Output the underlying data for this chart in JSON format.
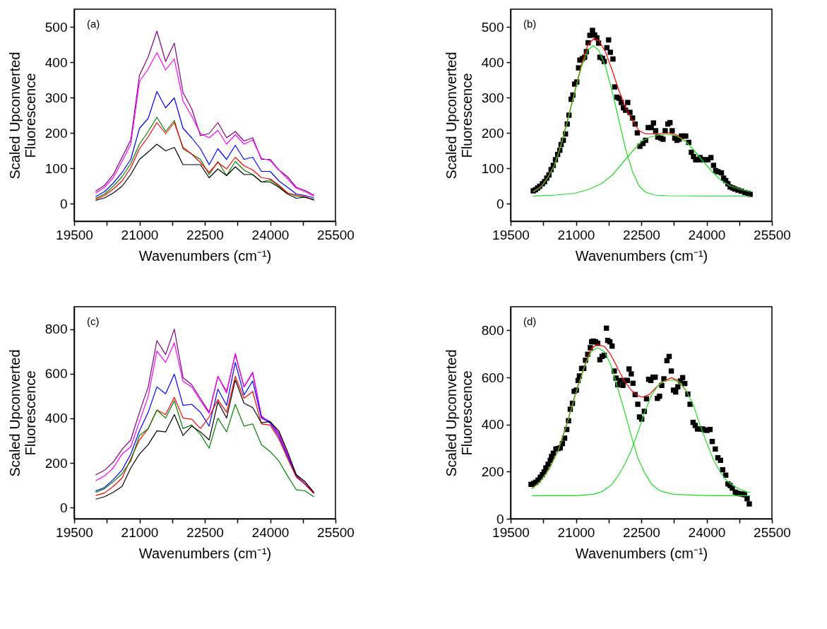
{
  "chart_data": [
    {
      "type": "line",
      "annotations": [
        "(a)"
      ],
      "xlabel": "Wavenumbers (cm⁻¹)",
      "ylabel": "Scaled Upconverted\nFluorescence",
      "xlim": [
        19500,
        25500
      ],
      "ylim": [
        -50,
        550
      ],
      "xticks": [
        19500,
        {
          "value": 20250,
          "label": null
        },
        21000,
        {
          "value": 21750,
          "label": null
        },
        22500,
        {
          "value": 23250,
          "label": null
        },
        24000,
        {
          "value": 24750,
          "label": null
        },
        25500
      ],
      "yticks": [
        0,
        100,
        200,
        300,
        400,
        500
      ],
      "x": [
        20000,
        20200,
        20400,
        20600,
        20800,
        21000,
        21200,
        21400,
        21600,
        21800,
        22000,
        22200,
        22400,
        22600,
        22800,
        23000,
        23200,
        23400,
        23600,
        23800,
        24000,
        24200,
        24400,
        24600,
        24800,
        25000
      ],
      "series": [
        {
          "color": "#800080",
          "values": [
            35,
            52,
            82,
            131,
            180,
            363,
            415,
            488,
            402,
            454,
            314,
            268,
            192,
            198,
            229,
            186,
            204,
            177,
            186,
            125,
            125,
            95,
            76,
            46,
            37,
            24
          ]
        },
        {
          "color": "#ff00ff",
          "values": [
            30,
            46,
            73,
            119,
            168,
            345,
            381,
            427,
            378,
            409,
            290,
            247,
            198,
            186,
            207,
            168,
            195,
            168,
            180,
            128,
            122,
            95,
            70,
            43,
            34,
            21
          ]
        },
        {
          "color": "#0000ff",
          "values": [
            20,
            34,
            58,
            88,
            125,
            213,
            241,
            317,
            271,
            299,
            213,
            186,
            155,
            110,
            155,
            125,
            165,
            125,
            131,
            91,
            91,
            64,
            46,
            27,
            23,
            16
          ]
        },
        {
          "color": "#008000",
          "values": [
            15,
            27,
            49,
            76,
            113,
            168,
            204,
            244,
            204,
            235,
            155,
            140,
            125,
            82,
            119,
            79,
            119,
            95,
            82,
            61,
            67,
            49,
            30,
            21,
            18,
            12
          ]
        },
        {
          "color": "#ff0000",
          "values": [
            12,
            23,
            41,
            64,
            101,
            155,
            189,
            229,
            198,
            229,
            159,
            140,
            116,
            88,
            116,
            98,
            131,
            107,
            95,
            73,
            70,
            52,
            30,
            24,
            20,
            10
          ]
        },
        {
          "color": "#000000",
          "values": [
            9,
            16,
            30,
            49,
            82,
            125,
            146,
            168,
            149,
            159,
            110,
            110,
            110,
            73,
            98,
            79,
            104,
            82,
            82,
            61,
            61,
            46,
            27,
            15,
            18,
            10
          ]
        }
      ]
    },
    {
      "type": "scatter",
      "annotations": [
        "(b)"
      ],
      "xlabel": "Wavenumbers (cm⁻¹)",
      "ylabel": "Scaled Upconverted\nFluorescence",
      "xlim": [
        19500,
        25500
      ],
      "ylim": [
        -50,
        550
      ],
      "xticks": [
        19500,
        {
          "value": 20250,
          "label": null
        },
        21000,
        {
          "value": 21750,
          "label": null
        },
        22500,
        {
          "value": 23250,
          "label": null
        },
        24000,
        {
          "value": 24750,
          "label": null
        },
        25500
      ],
      "yticks": [
        0,
        100,
        200,
        300,
        400,
        500
      ],
      "series": [
        {
          "color": "#000000",
          "marker": "square",
          "x": [
            20020,
            20070,
            20120,
            20170,
            20230,
            20280,
            20330,
            20380,
            20430,
            20480,
            20530,
            20580,
            20630,
            20660,
            20710,
            20760,
            20800,
            20840,
            20890,
            20930,
            20970,
            21020,
            21060,
            21090,
            21150,
            21200,
            21240,
            21280,
            21320,
            21380,
            21430,
            21480,
            21520,
            21550,
            21610,
            21650,
            21710,
            21750,
            21790,
            21850,
            21890,
            21940,
            21990,
            22040,
            22090,
            22140,
            22190,
            22240,
            22300,
            22360,
            22410,
            22470,
            22540,
            22600,
            22660,
            22730,
            22780,
            22830,
            22880,
            22950,
            23000,
            23050,
            23110,
            23160,
            23210,
            23270,
            23320,
            23370,
            23420,
            23470,
            23520,
            23590,
            23650,
            23700,
            23750,
            23800,
            23850,
            23900,
            23960,
            24030,
            24100,
            24160,
            24210,
            24260,
            24340,
            24390,
            24440,
            24490,
            24540,
            24600,
            24650,
            24720,
            24800,
            24880,
            24950,
            25000
          ],
          "values": [
            36,
            39,
            44,
            49,
            56,
            62,
            72,
            81,
            96,
            108,
            124,
            139,
            151,
            167,
            179,
            197,
            225,
            250,
            295,
            307,
            338,
            344,
            384,
            406,
            410,
            414,
            430,
            455,
            476,
            490,
            477,
            469,
            454,
            414,
            411,
            402,
            441,
            463,
            428,
            409,
            330,
            301,
            298,
            286,
            271,
            264,
            286,
            258,
            242,
            225,
            200,
            162,
            170,
            179,
            215,
            215,
            228,
            206,
            188,
            185,
            182,
            206,
            225,
            229,
            206,
            185,
            179,
            182,
            191,
            191,
            191,
            173,
            145,
            133,
            124,
            124,
            130,
            124,
            124,
            124,
            130,
            108,
            93,
            90,
            87,
            72,
            65,
            56,
            47,
            44,
            41,
            38,
            35,
            31,
            29,
            26
          ]
        },
        {
          "type": "line",
          "color": "#ff0000",
          "x": [
            20020,
            20200,
            20350,
            20510,
            20660,
            20810,
            20970,
            21120,
            21270,
            21420,
            21530,
            21680,
            21840,
            21990,
            22140,
            22300,
            22450,
            22600,
            22810,
            23110,
            23320,
            23520
          ],
          "values": [
            35,
            49,
            74,
            110,
            169,
            237,
            316,
            390,
            448,
            468,
            460,
            429,
            374,
            319,
            271,
            234,
            206,
            197,
            197,
            200,
            194,
            176
          ]
        },
        {
          "type": "line",
          "color": "#22dd22",
          "x": [
            20020,
            20200,
            20350,
            20510,
            20660,
            20810,
            20970,
            21120,
            21270,
            21390,
            21530,
            21680,
            21840,
            21990,
            22140,
            22300,
            22450,
            22600,
            22810,
            23110,
            24130,
            25000
          ],
          "values": [
            33,
            47,
            72,
            108,
            166,
            234,
            313,
            384,
            433,
            447,
            433,
            388,
            313,
            234,
            154,
            90,
            50,
            32,
            24,
            22,
            21,
            21
          ]
        },
        {
          "type": "line",
          "color": "#22dd22",
          "x": [
            20020,
            20560,
            20970,
            21320,
            21580,
            21840,
            22090,
            22300,
            22500,
            22700,
            22910,
            23110,
            23320,
            23520,
            23730,
            23930,
            24130,
            24340,
            24540,
            24750,
            25000
          ],
          "values": [
            21,
            24,
            29,
            41,
            56,
            81,
            118,
            148,
            176,
            188,
            194,
            196,
            191,
            176,
            148,
            118,
            90,
            65,
            50,
            41,
            33
          ]
        }
      ]
    },
    {
      "type": "line",
      "annotations": [
        "(c)"
      ],
      "xlabel": "Wavenumbers (cm⁻¹)",
      "ylabel": "Scaled Upconverted\nFluorescence",
      "xlim": [
        19500,
        25500
      ],
      "ylim": [
        -50,
        900
      ],
      "xticks": [
        19500,
        {
          "value": 20250,
          "label": null
        },
        21000,
        {
          "value": 21750,
          "label": null
        },
        22500,
        {
          "value": 23250,
          "label": null
        },
        24000,
        {
          "value": 24750,
          "label": null
        },
        25500
      ],
      "yticks": [
        0,
        200,
        400,
        600,
        800
      ],
      "x": [
        20000,
        20200,
        20400,
        20600,
        20800,
        21000,
        21200,
        21400,
        21600,
        21800,
        22000,
        22200,
        22400,
        22600,
        22800,
        23000,
        23200,
        23400,
        23600,
        23800,
        24000,
        24200,
        24400,
        24600,
        24800,
        25000
      ],
      "series": [
        {
          "color": "#800080",
          "values": [
            147,
            168,
            204,
            261,
            303,
            427,
            541,
            748,
            686,
            800,
            582,
            551,
            489,
            427,
            588,
            520,
            686,
            541,
            603,
            406,
            385,
            334,
            240,
            147,
            116,
            66
          ]
        },
        {
          "color": "#ff00ff",
          "values": [
            121,
            142,
            178,
            240,
            272,
            385,
            499,
            702,
            650,
            738,
            565,
            541,
            479,
            422,
            588,
            513,
            691,
            541,
            608,
            411,
            380,
            328,
            240,
            147,
            null,
            null
          ]
        },
        {
          "color": "#0000ff",
          "values": [
            75,
            90,
            126,
            168,
            240,
            344,
            427,
            541,
            510,
            598,
            458,
            463,
            427,
            365,
            531,
            458,
            650,
            505,
            567,
            401,
            380,
            318,
            230,
            142,
            106,
            66
          ]
        },
        {
          "color": "#ff0000",
          "values": [
            54,
            66,
            95,
            132,
            219,
            303,
            354,
            437,
            417,
            494,
            401,
            396,
            354,
            406,
            484,
            427,
            588,
            490,
            520,
            375,
            370,
            308,
            220,
            137,
            104,
            64
          ]
        },
        {
          "color": "#008000",
          "values": [
            69,
            85,
            116,
            152,
            209,
            323,
            354,
            437,
            401,
            479,
            354,
            370,
            328,
            266,
            401,
            339,
            463,
            365,
            375,
            282,
            251,
            209,
            142,
            80,
            75,
            49
          ]
        },
        {
          "color": "#000000",
          "values": [
            38,
            49,
            69,
            95,
            178,
            240,
            282,
            344,
            339,
            417,
            323,
            365,
            339,
            303,
            474,
            401,
            572,
            468,
            448,
            380,
            385,
            344,
            251,
            147,
            116,
            69
          ]
        }
      ]
    },
    {
      "type": "scatter",
      "annotations": [
        "(d)"
      ],
      "xlabel": "Wavenumbers (cm⁻¹)",
      "ylabel": "Scaled Upconverted\nFluorescence",
      "xlim": [
        19500,
        25500
      ],
      "ylim": [
        0,
        900
      ],
      "xticks": [
        19500,
        {
          "value": 20250,
          "label": null
        },
        21000,
        {
          "value": 21750,
          "label": null
        },
        22500,
        {
          "value": 23250,
          "label": null
        },
        24000,
        {
          "value": 24750,
          "label": null
        },
        25500
      ],
      "yticks": [
        0,
        200,
        400,
        600,
        800
      ],
      "series": [
        {
          "color": "#000000",
          "marker": "square",
          "x": [
            19970,
            20030,
            20080,
            20130,
            20180,
            20230,
            20270,
            20310,
            20360,
            20410,
            20440,
            20480,
            20540,
            20590,
            20640,
            20690,
            20740,
            20790,
            20830,
            20870,
            20920,
            20960,
            21010,
            21050,
            21080,
            21130,
            21180,
            21220,
            21270,
            21330,
            21360,
            21400,
            21450,
            21500,
            21550,
            21600,
            21650,
            21700,
            21730,
            21780,
            21830,
            21880,
            21920,
            21960,
            22010,
            22080,
            22130,
            22180,
            22220,
            22270,
            22310,
            22360,
            22420,
            22460,
            22510,
            22570,
            22620,
            22670,
            22720,
            22770,
            22820,
            22870,
            22920,
            22970,
            23020,
            23090,
            23140,
            23190,
            23240,
            23290,
            23340,
            23400,
            23450,
            23500,
            23570,
            23620,
            23690,
            23740,
            23790,
            23850,
            23910,
            23950,
            24010,
            24080,
            24130,
            24200,
            24260,
            24320,
            24370,
            24440,
            24490,
            24540,
            24590,
            24660,
            24710,
            24770,
            24820,
            24870,
            24930,
            24980
          ],
          "values": [
            146,
            150,
            155,
            164,
            176,
            187,
            199,
            216,
            231,
            248,
            264,
            278,
            296,
            298,
            301,
            319,
            342,
            379,
            416,
            465,
            490,
            541,
            546,
            587,
            606,
            638,
            638,
            673,
            698,
            726,
            751,
            754,
            751,
            745,
            675,
            689,
            694,
            809,
            757,
            751,
            733,
            627,
            597,
            569,
            587,
            566,
            587,
            587,
            636,
            615,
            575,
            527,
            486,
            432,
            423,
            456,
            509,
            592,
            587,
            601,
            601,
            511,
            520,
            566,
            594,
            671,
            689,
            627,
            546,
            538,
            560,
            585,
            599,
            574,
            529,
            486,
            409,
            396,
            381,
            381,
            381,
            377,
            375,
            379,
            328,
            296,
            259,
            248,
            208,
            185,
            148,
            141,
            130,
            113,
            108,
            106,
            105,
            102,
            85,
            63
          ]
        },
        {
          "type": "line",
          "color": "#ff0000",
          "x": [
            20000,
            20180,
            20380,
            20590,
            20790,
            20990,
            21200,
            21350,
            21500,
            21660,
            21810,
            21960,
            22120,
            22270,
            22420,
            22520,
            22680,
            22830,
            22980,
            23190,
            23340,
            23540
          ],
          "values": [
            130,
            159,
            211,
            290,
            402,
            532,
            652,
            722,
            740,
            731,
            694,
            638,
            583,
            546,
            523,
            516,
            527,
            555,
            581,
            599,
            587,
            541
          ]
        },
        {
          "type": "line",
          "color": "#22dd22",
          "x": [
            20000,
            20180,
            20380,
            20590,
            20790,
            20990,
            21200,
            21350,
            21500,
            21660,
            21810,
            21960,
            22120,
            22270,
            22420,
            22580,
            22730,
            22930,
            23240,
            24050,
            25000
          ],
          "values": [
            128,
            157,
            208,
            287,
            398,
            527,
            648,
            710,
            726,
            708,
            648,
            555,
            453,
            352,
            259,
            194,
            148,
            118,
            104,
            98,
            98
          ]
        },
        {
          "type": "line",
          "color": "#22dd22",
          "x": [
            20000,
            20990,
            21400,
            21610,
            21810,
            21960,
            22120,
            22270,
            22420,
            22580,
            22730,
            22880,
            23030,
            23240,
            23390,
            23540,
            23700,
            23850,
            24000,
            24160,
            24310,
            24460,
            24620,
            24770,
            25000
          ],
          "values": [
            98,
            98,
            104,
            116,
            143,
            180,
            231,
            291,
            365,
            453,
            523,
            564,
            585,
            590,
            578,
            541,
            481,
            398,
            324,
            250,
            199,
            162,
            139,
            125,
            111
          ]
        }
      ]
    }
  ]
}
